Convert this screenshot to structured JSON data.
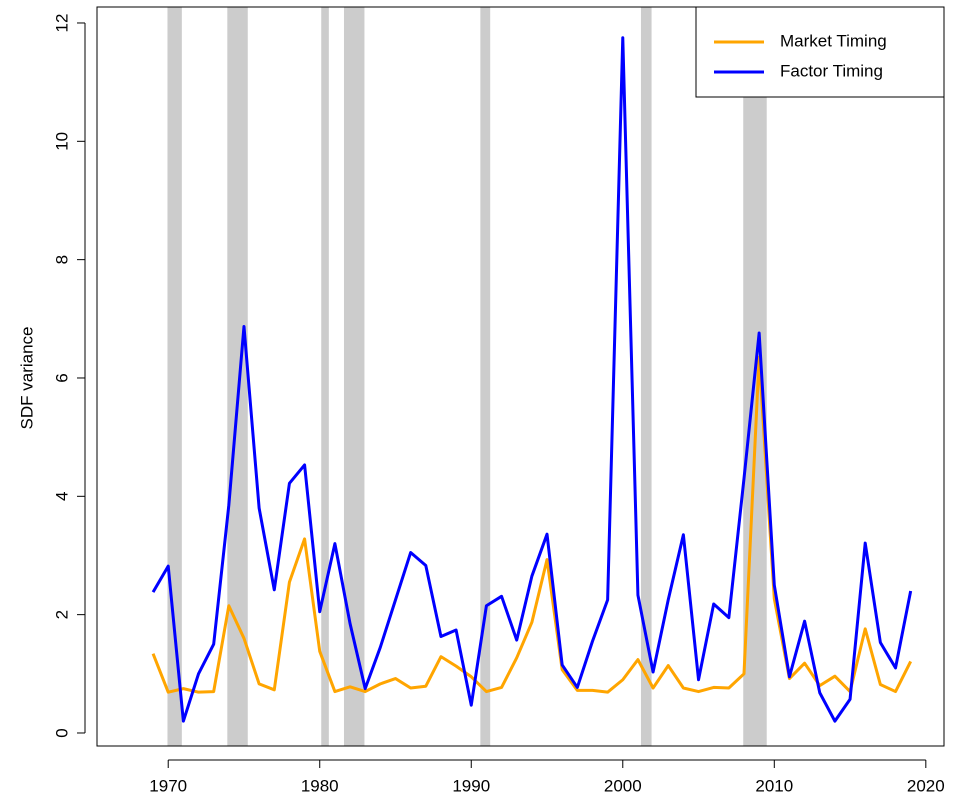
{
  "chart_data": {
    "type": "line",
    "y_label": "SDF variance",
    "x": [
      1969,
      1970,
      1971,
      1972,
      1973,
      1974,
      1975,
      1976,
      1977,
      1978,
      1979,
      1980,
      1981,
      1982,
      1983,
      1984,
      1985,
      1986,
      1987,
      1988,
      1989,
      1990,
      1991,
      1992,
      1993,
      1994,
      1995,
      1996,
      1997,
      1998,
      1999,
      2000,
      2001,
      2002,
      2003,
      2004,
      2005,
      2006,
      2007,
      2008,
      2009,
      2010,
      2011,
      2012,
      2013,
      2014,
      2015,
      2016,
      2017,
      2018,
      2019
    ],
    "series": [
      {
        "name": "Market Timing",
        "color": "#ffa500",
        "values": [
          1.34,
          0.69,
          0.75,
          0.69,
          0.7,
          2.15,
          1.6,
          0.83,
          0.73,
          2.55,
          3.28,
          1.38,
          0.7,
          0.78,
          0.7,
          0.83,
          0.92,
          0.76,
          0.79,
          1.29,
          1.13,
          0.95,
          0.7,
          0.77,
          1.27,
          1.87,
          2.93,
          1.07,
          0.72,
          0.72,
          0.69,
          0.9,
          1.24,
          0.76,
          1.14,
          0.76,
          0.7,
          0.77,
          0.76,
          1.0,
          6.35,
          2.27,
          0.92,
          1.18,
          0.8,
          0.96,
          0.7,
          1.76,
          0.82,
          0.7,
          1.21
        ]
      },
      {
        "name": "Factor Timing",
        "color": "#0000ff",
        "values": [
          2.38,
          2.82,
          0.2,
          1.0,
          1.5,
          3.85,
          6.87,
          3.8,
          2.42,
          4.22,
          4.53,
          2.05,
          3.2,
          1.85,
          0.75,
          1.45,
          2.25,
          3.05,
          2.83,
          1.63,
          1.74,
          0.47,
          2.15,
          2.31,
          1.57,
          2.65,
          3.36,
          1.15,
          0.77,
          1.55,
          2.25,
          11.75,
          2.33,
          1.03,
          2.25,
          3.35,
          0.9,
          2.18,
          1.95,
          4.3,
          6.76,
          2.5,
          0.95,
          1.89,
          0.68,
          0.2,
          0.57,
          3.21,
          1.53,
          1.1,
          2.4
        ]
      }
    ],
    "shaded_periods": [
      [
        1969.95,
        1970.9
      ],
      [
        1973.9,
        1975.25
      ],
      [
        1980.1,
        1980.6
      ],
      [
        1981.6,
        1982.95
      ],
      [
        1990.6,
        1991.25
      ],
      [
        2001.2,
        2001.9
      ],
      [
        2007.95,
        2009.5
      ]
    ],
    "shade_color": "#cccccc",
    "xlim": [
      1965.3,
      2021.2
    ],
    "xticks": [
      1970,
      1980,
      1990,
      2000,
      2010,
      2020
    ],
    "ylim": [
      -0.22,
      12.27
    ],
    "yticks": [
      0,
      2,
      4,
      6,
      8,
      10,
      12
    ],
    "legend": "top-right"
  }
}
